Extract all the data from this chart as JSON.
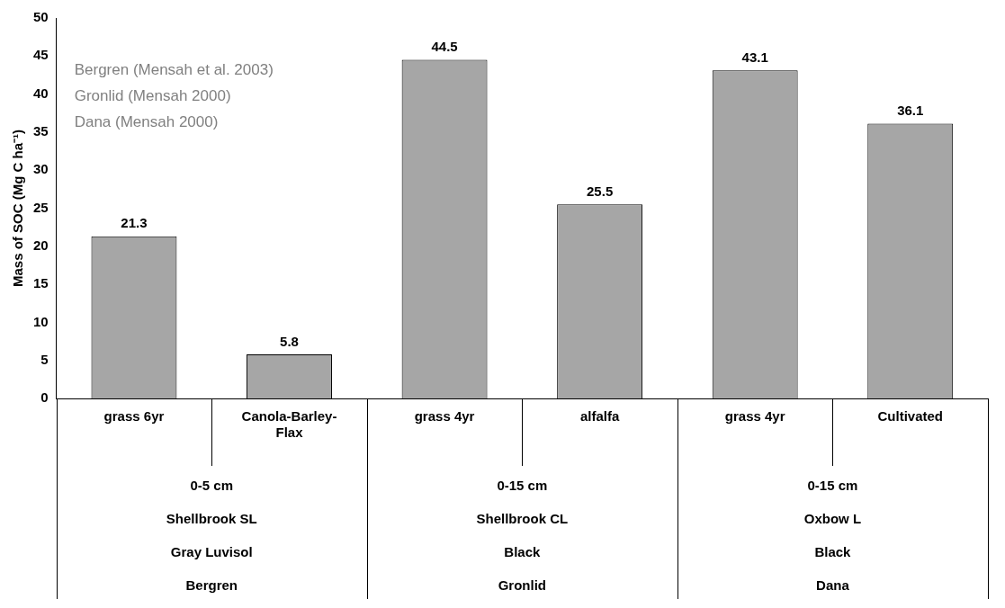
{
  "chart_data": {
    "type": "bar",
    "ylabel": "Mass of SOC (Mg C ha⁻¹)",
    "categories": [
      "grass 6yr",
      "Canola-Barley-Flax",
      "grass 4yr",
      "alfalfa",
      "grass 4yr",
      "Cultivated"
    ],
    "values": [
      21.3,
      5.8,
      44.5,
      25.5,
      43.1,
      36.1
    ],
    "color": "#a6a6a6",
    "ylim": [
      0,
      50
    ],
    "yticks": [
      0,
      5,
      10,
      15,
      20,
      25,
      30,
      35,
      40,
      45,
      50
    ],
    "grid": false,
    "data_labels": true,
    "annotations": [
      "Bergren (Mensah et al. 2003)",
      "Gronlid (Mensah 2000)",
      "Dana (Mensah 2000)",
      "0-5 cm",
      "0-15 cm",
      "0-15 cm",
      "Shellbrook SL",
      "Shellbrook CL",
      "Oxbow L",
      "Gray Luvisol",
      "Black",
      "Black",
      "Bergren",
      "Gronlid",
      "Dana"
    ]
  }
}
